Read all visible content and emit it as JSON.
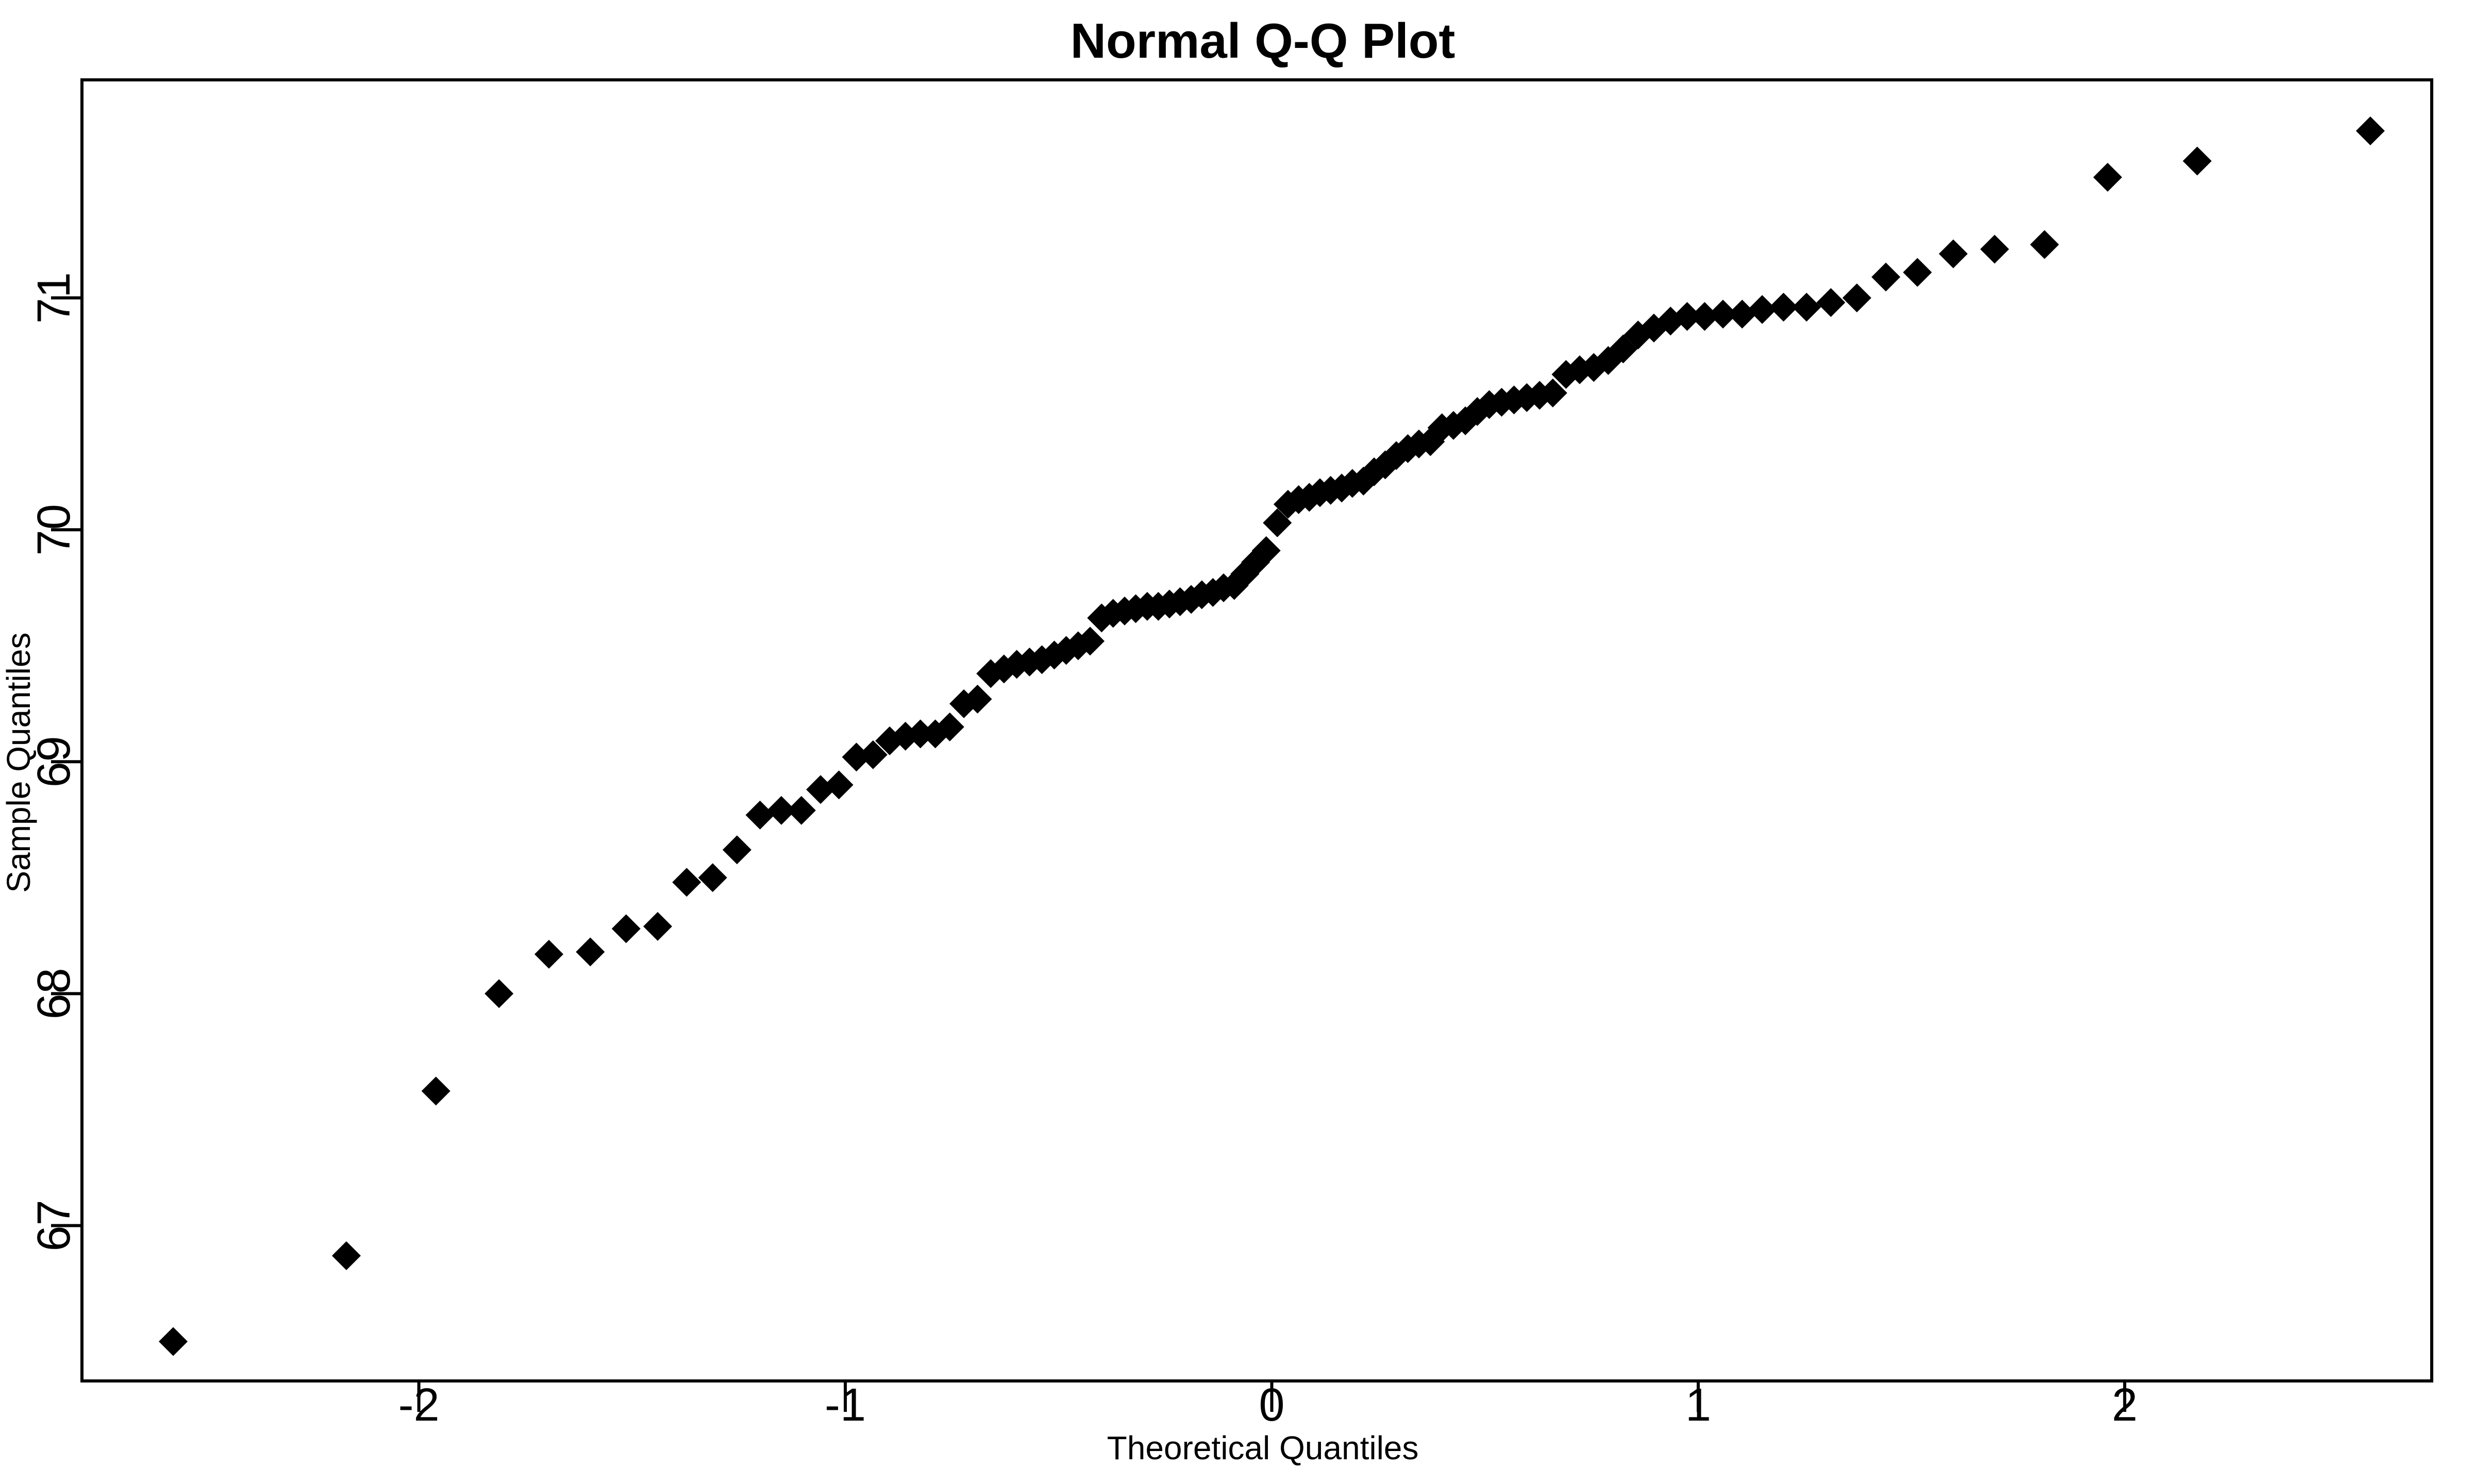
{
  "figure": {
    "background_color": "#ffffff",
    "foreground_color": "#000000"
  },
  "chart_data": {
    "type": "scatter",
    "title": "Normal Q-Q Plot",
    "xlabel": "Theoretical Quantiles",
    "ylabel": "Sample Quantiles",
    "x_ticks": [
      -2,
      -1,
      0,
      1,
      2
    ],
    "y_ticks": [
      67,
      68,
      69,
      70,
      71
    ],
    "xlim": [
      -2.79,
      2.72
    ],
    "ylim": [
      66.33,
      71.94
    ],
    "grid": false,
    "legend": "none",
    "marker": {
      "shape": "filled-diamond",
      "half_size_px": 28,
      "color": "#000000"
    },
    "n_points": 100,
    "theoretical_quantiles": [
      -2.576,
      -2.17,
      -1.96,
      -1.812,
      -1.695,
      -1.598,
      -1.514,
      -1.44,
      -1.372,
      -1.311,
      -1.254,
      -1.2,
      -1.15,
      -1.103,
      -1.058,
      -1.015,
      -0.974,
      -0.935,
      -0.896,
      -0.859,
      -0.824,
      -0.789,
      -0.755,
      -0.722,
      -0.69,
      -0.659,
      -0.628,
      -0.598,
      -0.568,
      -0.539,
      -0.51,
      -0.482,
      -0.454,
      -0.426,
      -0.399,
      -0.372,
      -0.345,
      -0.319,
      -0.292,
      -0.266,
      -0.24,
      -0.215,
      -0.189,
      -0.164,
      -0.138,
      -0.113,
      -0.088,
      -0.063,
      -0.038,
      -0.013,
      0.013,
      0.038,
      0.063,
      0.088,
      0.113,
      0.138,
      0.164,
      0.189,
      0.215,
      0.24,
      0.266,
      0.292,
      0.319,
      0.345,
      0.372,
      0.399,
      0.426,
      0.454,
      0.482,
      0.51,
      0.539,
      0.568,
      0.598,
      0.628,
      0.659,
      0.69,
      0.722,
      0.755,
      0.789,
      0.824,
      0.859,
      0.896,
      0.935,
      0.974,
      1.015,
      1.058,
      1.103,
      1.15,
      1.2,
      1.254,
      1.311,
      1.372,
      1.44,
      1.514,
      1.598,
      1.695,
      1.812,
      1.96,
      2.17,
      2.576
    ],
    "sample_quantiles": [
      66.5,
      66.87,
      67.58,
      68.0,
      68.17,
      68.18,
      68.28,
      68.29,
      68.48,
      68.5,
      68.62,
      68.77,
      68.79,
      68.79,
      68.88,
      68.9,
      69.02,
      69.03,
      69.09,
      69.11,
      69.12,
      69.12,
      69.15,
      69.25,
      69.27,
      69.38,
      69.4,
      69.42,
      69.43,
      69.44,
      69.46,
      69.48,
      69.5,
      69.52,
      69.62,
      69.64,
      69.65,
      69.66,
      69.67,
      69.67,
      69.68,
      69.69,
      69.7,
      69.72,
      69.73,
      69.75,
      69.76,
      69.81,
      69.86,
      69.91,
      70.03,
      70.11,
      70.13,
      70.14,
      70.16,
      70.17,
      70.18,
      70.2,
      70.21,
      70.25,
      70.28,
      70.32,
      70.35,
      70.37,
      70.38,
      70.44,
      70.45,
      70.47,
      70.51,
      70.54,
      70.55,
      70.56,
      70.57,
      70.58,
      70.59,
      70.67,
      70.69,
      70.7,
      70.73,
      70.78,
      70.84,
      70.87,
      70.9,
      70.92,
      70.92,
      70.93,
      70.93,
      70.95,
      70.96,
      70.96,
      70.98,
      71.0,
      71.09,
      71.11,
      71.19,
      71.21,
      71.23,
      71.52,
      71.59,
      71.72
    ]
  }
}
